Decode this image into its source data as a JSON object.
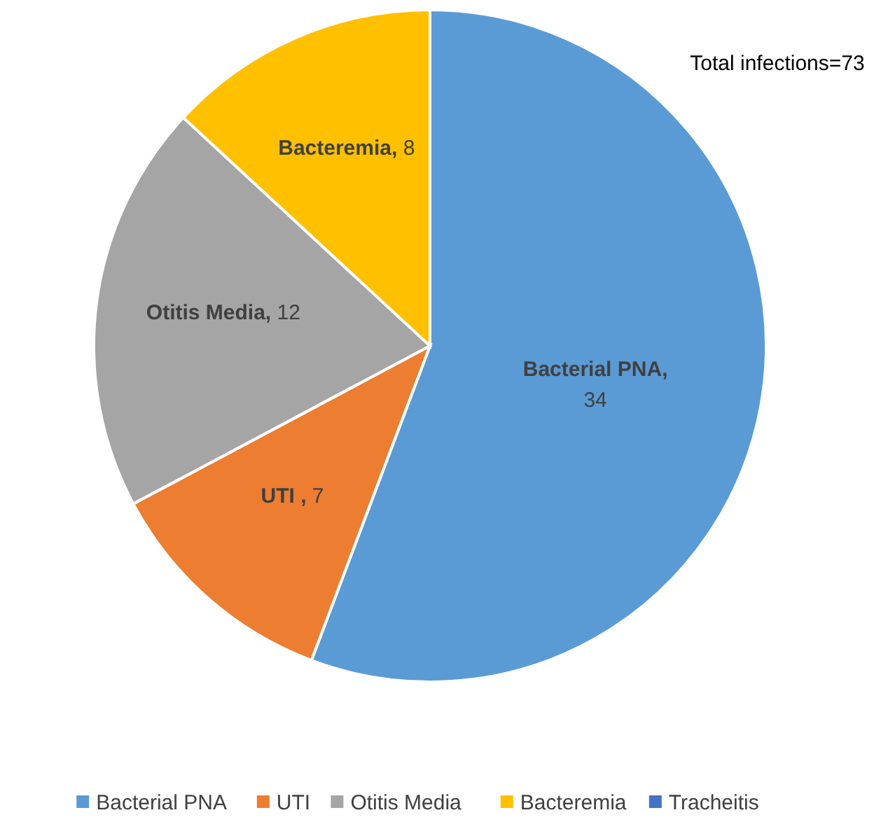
{
  "chart_data": {
    "type": "pie",
    "categories": [
      "Bacterial PNA",
      "UTI",
      "Otitis Media",
      "Bacteremia",
      "Tracheitis"
    ],
    "values": [
      34,
      7,
      12,
      8,
      0
    ],
    "colors": [
      "#5b9bd5",
      "#ed7d31",
      "#a5a5a5",
      "#ffc000",
      "#4472c4"
    ],
    "value_labels": [
      "Bacterial PNA, 34",
      "UTI , 7",
      "Otitis Media, 12",
      "Bacteremia, 8",
      null
    ],
    "legend": "bottom",
    "annotations": [
      "Total infections=73"
    ]
  }
}
